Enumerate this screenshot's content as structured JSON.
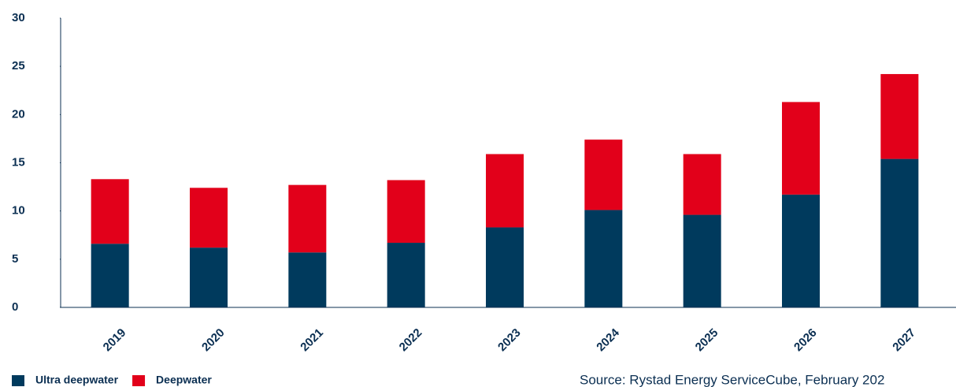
{
  "chart_data": {
    "type": "stacked_bar",
    "categories": [
      "2019",
      "2020",
      "2021",
      "2022",
      "2023",
      "2024",
      "2025",
      "2026",
      "2027"
    ],
    "series": [
      {
        "name": "Ultra deepwater",
        "color": "#003a5d",
        "values": [
          6.6,
          6.2,
          5.7,
          6.7,
          8.3,
          10.1,
          9.6,
          11.7,
          15.4
        ]
      },
      {
        "name": "Deepwater",
        "color": "#e2001a",
        "values": [
          6.7,
          6.2,
          7.0,
          6.5,
          7.6,
          7.3,
          6.3,
          9.6,
          8.8
        ]
      }
    ],
    "ylim": [
      0,
      30
    ],
    "yticks": [
      0,
      5,
      10,
      15,
      20,
      25,
      30
    ],
    "source": "Source: Rystad Energy ServiceCube, February 202"
  }
}
